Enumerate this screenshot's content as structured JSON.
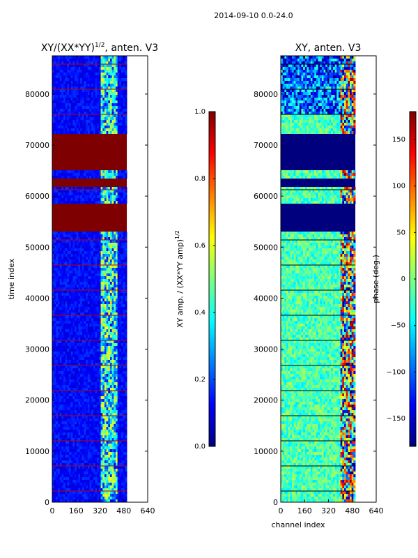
{
  "figure_title": "2014-09-10 0.0-24.0",
  "colors": {
    "jet": [
      "#00007f",
      "#0000ff",
      "#007fff",
      "#00ffff",
      "#7fff7f",
      "#ffff00",
      "#ff7f00",
      "#ff0000",
      "#7f0000"
    ],
    "flagged": "#7f0000",
    "flag_line": "#c00000"
  },
  "chart_data": [
    {
      "type": "heatmap",
      "title_main": "XY/(XX*YY)",
      "title_sup": "1/2",
      "title_tail": ", anten. V3",
      "xlabel": "",
      "ylabel": "time index",
      "xlim": [
        0,
        640
      ],
      "ylim": [
        0,
        87500
      ],
      "data_xmax": 500,
      "xticks": [
        0,
        160,
        320,
        480,
        640
      ],
      "xtick_labels": [
        "0",
        "160",
        "320",
        "480",
        "640"
      ],
      "yticks": [
        0,
        10000,
        20000,
        30000,
        40000,
        50000,
        60000,
        70000,
        80000
      ],
      "ytick_labels": [
        "0",
        "10000",
        "20000",
        "30000",
        "40000",
        "50000",
        "60000",
        "70000",
        "80000"
      ],
      "flagged_time_bands": [
        [
          53000,
          58500
        ],
        [
          62000,
          63500
        ],
        [
          65200,
          72300
        ]
      ],
      "colorbar": {
        "label_main": "XY amp. / (XX*YY amp)",
        "label_sup": "1/2",
        "range": [
          0.0,
          1.0
        ],
        "ticks": [
          0.0,
          0.2,
          0.4,
          0.6,
          0.8,
          1.0
        ],
        "tick_labels": [
          "0.0",
          "0.2",
          "0.4",
          "0.6",
          "0.8",
          "1.0"
        ]
      }
    },
    {
      "type": "heatmap",
      "title_main": "XY, anten. V3",
      "title_sup": "",
      "title_tail": "",
      "xlabel": "channel index",
      "ylabel": "",
      "xlim": [
        0,
        640
      ],
      "ylim": [
        0,
        87500
      ],
      "data_xmax": 500,
      "xticks": [
        0,
        160,
        320,
        480,
        640
      ],
      "xtick_labels": [
        "0",
        "160",
        "320",
        "480",
        "640"
      ],
      "yticks": [
        0,
        10000,
        20000,
        30000,
        40000,
        50000,
        60000,
        70000,
        80000
      ],
      "ytick_labels": [
        "0",
        "10000",
        "20000",
        "30000",
        "40000",
        "50000",
        "60000",
        "70000",
        "80000"
      ],
      "flagged_time_bands": [
        [
          53000,
          58500
        ],
        [
          62000,
          63500
        ],
        [
          65200,
          72300
        ]
      ],
      "colorbar": {
        "label_main": "phase (deg.)",
        "label_sup": "",
        "range": [
          -180,
          180
        ],
        "ticks": [
          -150,
          -100,
          -50,
          0,
          50,
          100,
          150
        ],
        "tick_labels": [
          "−150",
          "−100",
          "−50",
          "0",
          "50",
          "100",
          "150"
        ]
      }
    }
  ]
}
